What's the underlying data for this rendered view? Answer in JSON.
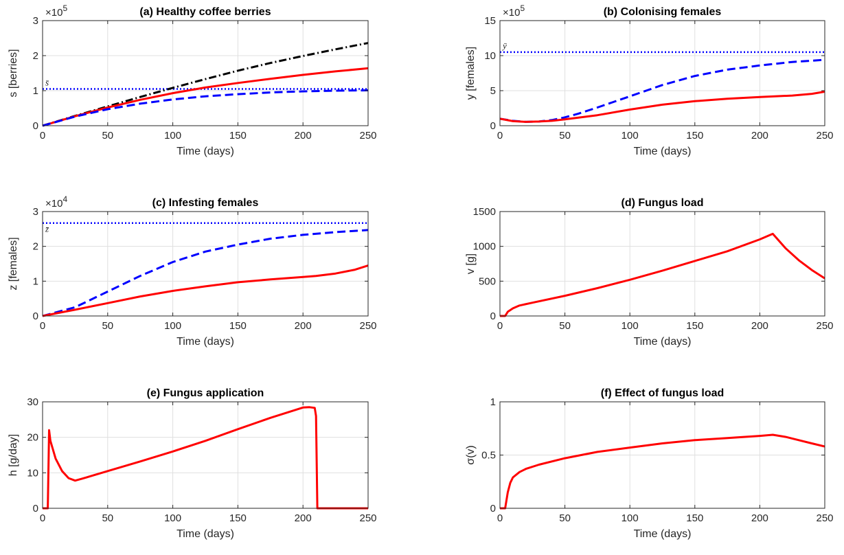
{
  "colors": {
    "red": "#ff0000",
    "blue": "#0000ff",
    "black": "#000000",
    "axis": "#262626",
    "grid": "#dfdfdf"
  },
  "chart_data": [
    {
      "type": "line",
      "title": "(a) Healthy coffee berries",
      "xlabel": "Time (days)",
      "ylabel": "s [berries]",
      "xlim": [
        0,
        250
      ],
      "ylim": [
        0,
        300000
      ],
      "xticks": [
        0,
        50,
        100,
        150,
        200,
        250
      ],
      "yticks": [
        0,
        100000,
        200000,
        300000
      ],
      "ytick_labels": [
        "0",
        "1",
        "2",
        "3"
      ],
      "exponent": "5",
      "grid": true,
      "reference": {
        "label": "s̄",
        "value": 105000
      },
      "series": [
        {
          "color": "#000000",
          "dash": "dashdot",
          "x": [
            0,
            25,
            50,
            75,
            100,
            125,
            150,
            175,
            200,
            225,
            250
          ],
          "y": [
            0,
            28000,
            55000,
            82000,
            108000,
            133000,
            157000,
            179000,
            199000,
            218000,
            236000
          ]
        },
        {
          "color": "#ff0000",
          "dash": "solid",
          "x": [
            0,
            25,
            50,
            75,
            100,
            125,
            150,
            175,
            200,
            225,
            250
          ],
          "y": [
            0,
            27000,
            52000,
            74000,
            93000,
            109000,
            122000,
            134000,
            145000,
            155000,
            164000
          ]
        },
        {
          "color": "#0000ff",
          "dash": "dashed",
          "x": [
            0,
            25,
            50,
            75,
            100,
            125,
            150,
            175,
            200,
            225,
            250
          ],
          "y": [
            0,
            26000,
            47000,
            63000,
            75000,
            84000,
            90000,
            95000,
            98000,
            100000,
            101000
          ]
        }
      ]
    },
    {
      "type": "line",
      "title": "(b) Colonising females",
      "xlabel": "Time (days)",
      "ylabel": "y [females]",
      "xlim": [
        0,
        250
      ],
      "ylim": [
        0,
        1500000
      ],
      "xticks": [
        0,
        50,
        100,
        150,
        200,
        250
      ],
      "yticks": [
        0,
        500000,
        1000000,
        1500000
      ],
      "ytick_labels": [
        "0",
        "5",
        "10",
        "15"
      ],
      "exponent": "5",
      "grid": true,
      "reference": {
        "label": "ȳ",
        "value": 1050000
      },
      "series": [
        {
          "color": "#0000ff",
          "dash": "dashed",
          "x": [
            0,
            10,
            20,
            30,
            40,
            50,
            60,
            75,
            100,
            125,
            150,
            175,
            200,
            225,
            250
          ],
          "y": [
            100000,
            70000,
            55000,
            60000,
            80000,
            120000,
            170000,
            260000,
            420000,
            580000,
            710000,
            800000,
            860000,
            910000,
            940000
          ]
        },
        {
          "color": "#ff0000",
          "dash": "solid",
          "x": [
            0,
            10,
            20,
            30,
            40,
            50,
            75,
            100,
            125,
            150,
            175,
            200,
            225,
            240,
            250
          ],
          "y": [
            100000,
            65000,
            55000,
            60000,
            70000,
            90000,
            150000,
            230000,
            300000,
            350000,
            385000,
            410000,
            430000,
            455000,
            485000
          ]
        }
      ]
    },
    {
      "type": "line",
      "title": "(c) Infesting females",
      "xlabel": "Time (days)",
      "ylabel": "z [females]",
      "xlim": [
        0,
        250
      ],
      "ylim": [
        0,
        30000
      ],
      "xticks": [
        0,
        50,
        100,
        150,
        200,
        250
      ],
      "yticks": [
        0,
        10000,
        20000,
        30000
      ],
      "ytick_labels": [
        "0",
        "1",
        "2",
        "3"
      ],
      "exponent": "4",
      "grid": true,
      "reference": {
        "label": "z̄",
        "value": 26700
      },
      "series": [
        {
          "color": "#0000ff",
          "dash": "dashed",
          "x": [
            0,
            25,
            50,
            75,
            100,
            125,
            150,
            175,
            200,
            225,
            250
          ],
          "y": [
            0,
            2500,
            7000,
            11500,
            15500,
            18500,
            20500,
            22200,
            23300,
            24100,
            24700
          ]
        },
        {
          "color": "#ff0000",
          "dash": "solid",
          "x": [
            0,
            25,
            50,
            75,
            100,
            125,
            150,
            175,
            200,
            210,
            225,
            240,
            250
          ],
          "y": [
            0,
            1800,
            3700,
            5600,
            7200,
            8500,
            9700,
            10500,
            11200,
            11500,
            12200,
            13300,
            14500
          ]
        }
      ]
    },
    {
      "type": "line",
      "title": "(d) Fungus load",
      "xlabel": "Time (days)",
      "ylabel": "v [g]",
      "xlim": [
        0,
        250
      ],
      "ylim": [
        0,
        1500
      ],
      "xticks": [
        0,
        50,
        100,
        150,
        200,
        250
      ],
      "yticks": [
        0,
        500,
        1000,
        1500
      ],
      "ytick_labels": [
        "0",
        "500",
        "1000",
        "1500"
      ],
      "exponent": "",
      "grid": true,
      "series": [
        {
          "color": "#ff0000",
          "dash": "solid",
          "x": [
            0,
            4,
            6,
            10,
            15,
            25,
            50,
            75,
            100,
            125,
            150,
            175,
            200,
            210,
            220,
            230,
            240,
            250
          ],
          "y": [
            0,
            0,
            60,
            110,
            150,
            190,
            290,
            400,
            520,
            650,
            790,
            930,
            1100,
            1180,
            970,
            800,
            660,
            540
          ]
        }
      ]
    },
    {
      "type": "line",
      "title": "(e) Fungus application",
      "xlabel": "Time (days)",
      "ylabel": "h [g/day]",
      "xlim": [
        0,
        250
      ],
      "ylim": [
        0,
        30
      ],
      "xticks": [
        0,
        50,
        100,
        150,
        200,
        250
      ],
      "yticks": [
        0,
        10,
        20,
        30
      ],
      "ytick_labels": [
        "0",
        "10",
        "20",
        "30"
      ],
      "exponent": "",
      "grid": true,
      "series": [
        {
          "color": "#ff0000",
          "dash": "solid",
          "x": [
            0,
            4,
            5,
            6,
            10,
            15,
            20,
            25,
            30,
            50,
            75,
            100,
            125,
            150,
            175,
            200,
            205,
            209,
            210,
            211,
            250
          ],
          "y": [
            0,
            0,
            22,
            19,
            14,
            10.5,
            8.5,
            7.8,
            8.3,
            10.5,
            13.2,
            16,
            19,
            22.3,
            25.5,
            28.4,
            28.5,
            28.3,
            26,
            0,
            0
          ]
        }
      ]
    },
    {
      "type": "line",
      "title": "(f) Effect of fungus load",
      "xlabel": "Time (days)",
      "ylabel": "σ(v)",
      "xlim": [
        0,
        250
      ],
      "ylim": [
        0,
        1
      ],
      "xticks": [
        0,
        50,
        100,
        150,
        200,
        250
      ],
      "yticks": [
        0,
        0.5,
        1
      ],
      "ytick_labels": [
        "0",
        "0.5",
        "1"
      ],
      "exponent": "",
      "grid": true,
      "series": [
        {
          "color": "#ff0000",
          "dash": "solid",
          "x": [
            0,
            4,
            6,
            8,
            10,
            15,
            20,
            30,
            50,
            75,
            100,
            125,
            150,
            175,
            200,
            210,
            220,
            230,
            240,
            250
          ],
          "y": [
            0,
            0,
            0.15,
            0.24,
            0.29,
            0.34,
            0.37,
            0.41,
            0.47,
            0.53,
            0.57,
            0.61,
            0.64,
            0.66,
            0.68,
            0.69,
            0.67,
            0.64,
            0.61,
            0.58
          ]
        }
      ]
    }
  ]
}
